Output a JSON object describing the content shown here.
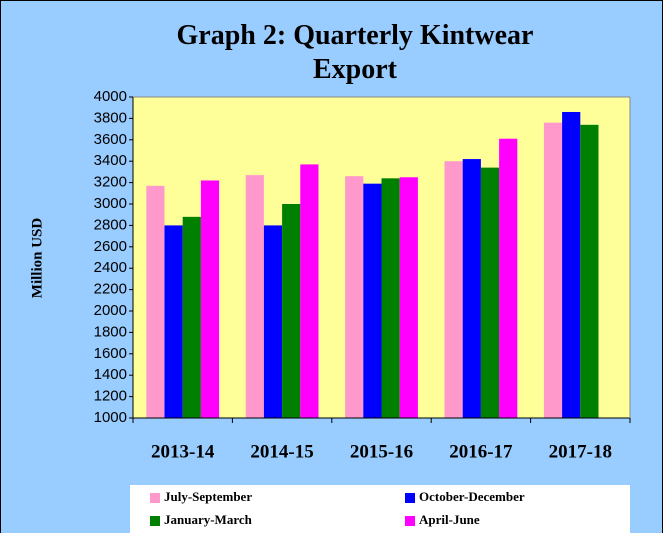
{
  "chart_data": {
    "type": "bar",
    "title": "Graph 2: Quarterly Kintwear Export",
    "y_label": "Million USD",
    "categories": [
      "2013-14",
      "2014-15",
      "2015-16",
      "2016-17",
      "2017-18"
    ],
    "series": [
      {
        "name": "July-September",
        "color": "#ff99cc",
        "values": [
          3170,
          3270,
          3260,
          3400,
          3760
        ]
      },
      {
        "name": "October-December",
        "color": "#0000ff",
        "values": [
          2800,
          2800,
          3190,
          3420,
          3860
        ]
      },
      {
        "name": "January-March",
        "color": "#008000",
        "values": [
          2880,
          3000,
          3240,
          3340,
          3740
        ]
      },
      {
        "name": "April-June",
        "color": "#ff00ff",
        "values": [
          3220,
          3370,
          3250,
          3610,
          null
        ]
      }
    ],
    "ylim": [
      1000,
      4000
    ],
    "yticks": [
      1000,
      1200,
      1400,
      1600,
      1800,
      2000,
      2200,
      2400,
      2600,
      2800,
      3000,
      3200,
      3400,
      3600,
      3800,
      4000
    ],
    "grid": false,
    "legend": "bottom"
  }
}
